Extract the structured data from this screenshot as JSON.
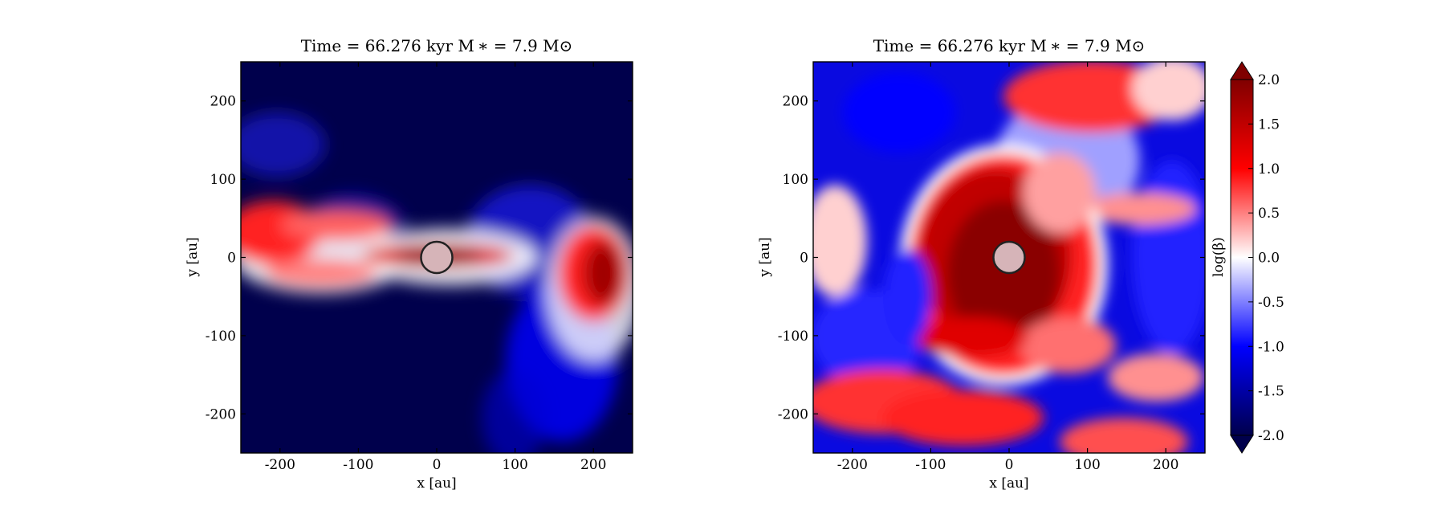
{
  "chart_data": [
    {
      "type": "heatmap",
      "title": "Time = 66.276 kyr    M ∗ = 7.9 M⊙",
      "xlabel": "x [au]",
      "ylabel": "y [au]",
      "xlim": [
        -250,
        250
      ],
      "ylim": [
        -250,
        250
      ],
      "xticks": [
        -200,
        -100,
        0,
        100,
        200
      ],
      "yticks": [
        -200,
        -100,
        0,
        100,
        200
      ],
      "xtick_labels": [
        "-200",
        "-100",
        "0",
        "100",
        "200"
      ],
      "ytick_labels": [
        "-200",
        "-100",
        "0",
        "100",
        "200"
      ],
      "star_marker": {
        "x": 0,
        "y": 0,
        "radius_au": 20,
        "color": "#d6b4b8"
      }
    },
    {
      "type": "heatmap",
      "title": "Time = 66.276 kyr    M ∗ = 7.9 M⊙",
      "xlabel": "x [au]",
      "ylabel": "y [au]",
      "xlim": [
        -250,
        250
      ],
      "ylim": [
        -250,
        250
      ],
      "xticks": [
        -200,
        -100,
        0,
        100,
        200
      ],
      "yticks": [
        -200,
        -100,
        0,
        100,
        200
      ],
      "xtick_labels": [
        "-200",
        "-100",
        "0",
        "100",
        "200"
      ],
      "ytick_labels": [
        "-200",
        "-100",
        "0",
        "100",
        "200"
      ],
      "star_marker": {
        "x": 0,
        "y": 0,
        "radius_au": 20,
        "color": "#d6b4b8"
      }
    }
  ],
  "colorbar": {
    "label": "log(β)",
    "range": [
      -2.0,
      2.0
    ],
    "ticks": [
      2.0,
      1.5,
      1.0,
      0.5,
      0.0,
      -0.5,
      -1.0,
      -1.5,
      -2.0
    ],
    "tick_labels": [
      "2.0",
      "1.5",
      "1.0",
      "0.5",
      "0.0",
      "-0.5",
      "-1.0",
      "-1.5",
      "-2.0"
    ],
    "colormap": "seismic",
    "colors": [
      "#00004c",
      "#0000ff",
      "#ffffff",
      "#ff0000",
      "#800000"
    ],
    "extend": "both"
  }
}
